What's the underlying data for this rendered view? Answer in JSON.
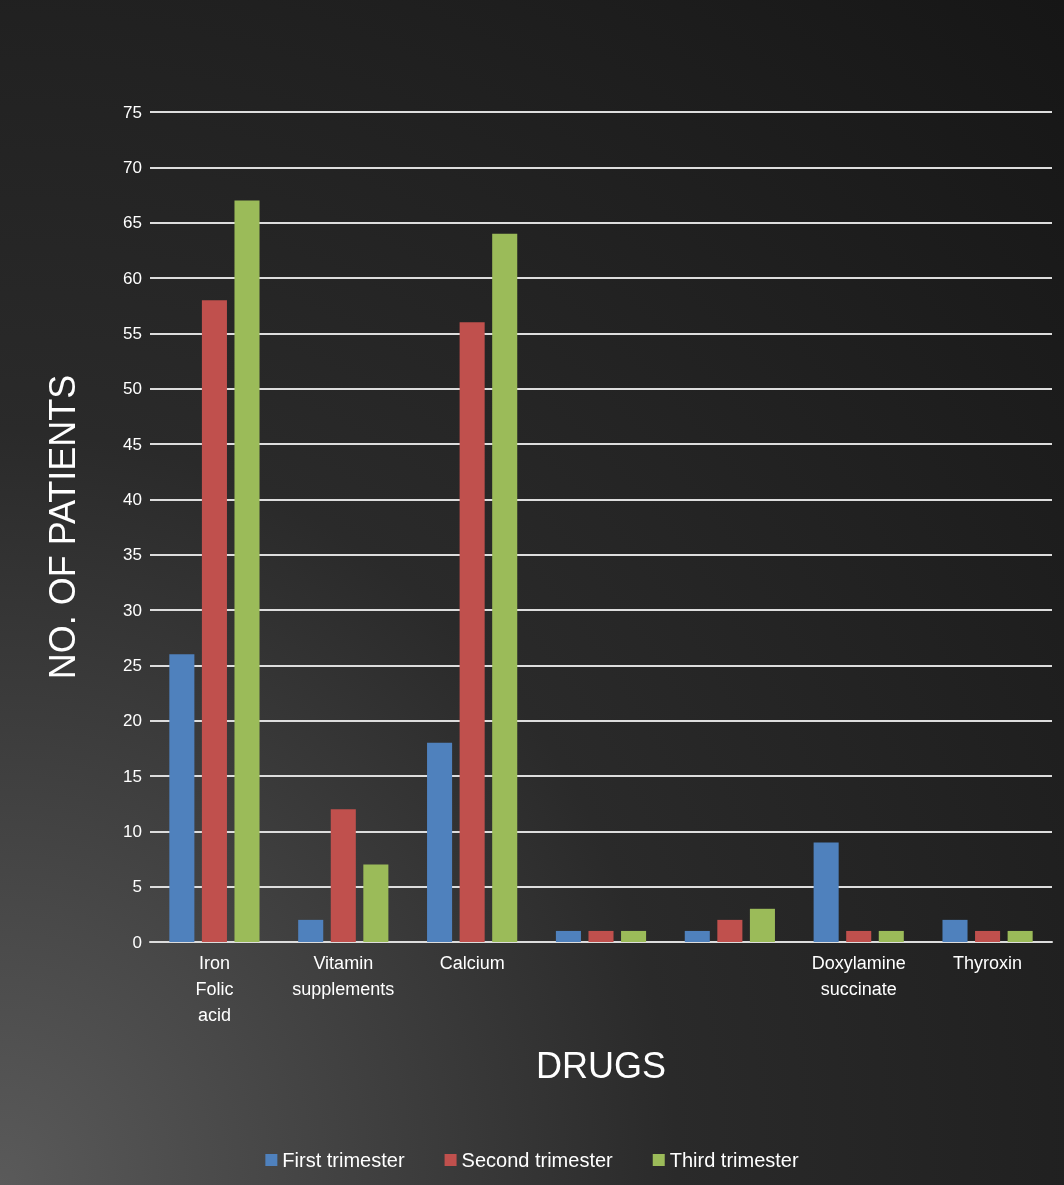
{
  "chart_data": {
    "type": "bar",
    "xlabel": "DRUGS",
    "ylabel": "NO. OF PATIENTS",
    "categories": [
      "Iron Folic acid",
      "Vitamin supplements",
      "Calcium",
      null,
      null,
      "Doxylamine succinate",
      "Thyroxin"
    ],
    "series": [
      {
        "name": "First trimester",
        "color": "#4f81bd",
        "values": [
          26,
          2,
          18,
          1,
          1,
          9,
          2
        ]
      },
      {
        "name": "Second trimester",
        "color": "#c0504d",
        "values": [
          58,
          12,
          56,
          1,
          2,
          1,
          1
        ]
      },
      {
        "name": "Third trimester",
        "color": "#9bbb59",
        "values": [
          67,
          7,
          64,
          1,
          3,
          1,
          1
        ]
      }
    ],
    "ylim": [
      0,
      75
    ],
    "yticks": [
      0,
      5,
      10,
      15,
      20,
      25,
      30,
      35,
      40,
      45,
      50,
      55,
      60,
      65,
      70,
      75
    ],
    "grid": "y",
    "legend": "bottom"
  }
}
